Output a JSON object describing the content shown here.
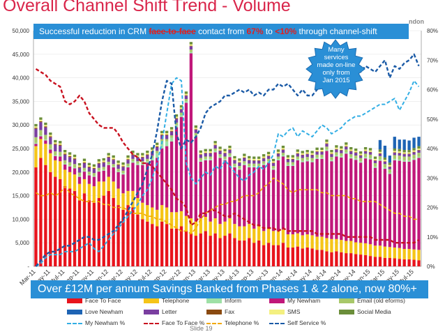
{
  "slide": {
    "title": "Overall Channel Shift Trend - Volume",
    "brand_fragment": "ndon",
    "slide_number": "Slide 19"
  },
  "banner_top": {
    "prefix": "Successful reduction in CRM ",
    "highlight1": "face-to-face",
    "middle1": " contact from ",
    "highlight2": "67%",
    "middle2": " to ",
    "highlight3": "<10%",
    "suffix": " through channel-shift"
  },
  "callout": {
    "text": "Many services made on-line only from Jan 2015",
    "color": "#2a8fd6"
  },
  "banner_bottom": {
    "text": "Over £12M per annum Savings Banked from Phases 1 & 2 alone, now 80%+"
  },
  "chart_data": {
    "type": "bar",
    "stacked": true,
    "left_axis": {
      "min": 0,
      "max": 50000,
      "ticks": [
        0,
        5000,
        10000,
        15000,
        20000,
        25000,
        30000,
        35000,
        40000,
        45000,
        50000
      ],
      "tick_labels": [
        "-",
        "5,000",
        "10,000",
        "15,000",
        "20,000",
        "25,000",
        "30,000",
        "35,000",
        "40,000",
        "45,000",
        "50,000"
      ]
    },
    "right_axis": {
      "min": 0,
      "max": 80,
      "ticks": [
        0,
        10,
        20,
        30,
        40,
        50,
        60,
        70,
        80
      ],
      "tick_labels": [
        "0%",
        "10%",
        "20%",
        "30%",
        "40%",
        "50%",
        "60%",
        "70%",
        "80%"
      ]
    },
    "x_labels": [
      {
        "index": 0,
        "label": "Mar-11"
      },
      {
        "index": 3,
        "label": "May-11"
      },
      {
        "index": 6,
        "label": "Jul-11"
      },
      {
        "index": 9,
        "label": "Sep-11"
      },
      {
        "index": 12,
        "label": "Nov-11"
      },
      {
        "index": 15,
        "label": "Jan-12"
      },
      {
        "index": 18,
        "label": "Mar-12"
      },
      {
        "index": 21,
        "label": "May-12"
      },
      {
        "index": 24,
        "label": "Jul-12"
      },
      {
        "index": 27,
        "label": "Sep-12"
      },
      {
        "index": 30,
        "label": "Nov-12"
      },
      {
        "index": 33,
        "label": "Jan-13"
      },
      {
        "index": 36,
        "label": "Mar-13"
      },
      {
        "index": 39,
        "label": "May-13"
      },
      {
        "index": 42,
        "label": "Jul-13"
      },
      {
        "index": 45,
        "label": "Sep-13"
      },
      {
        "index": 48,
        "label": "Nov-13"
      },
      {
        "index": 51,
        "label": "Jan-14"
      },
      {
        "index": 54,
        "label": "Mar-14"
      },
      {
        "index": 57,
        "label": "May-14"
      },
      {
        "index": 60,
        "label": "Jul-14"
      },
      {
        "index": 63,
        "label": "Sep-14"
      },
      {
        "index": 66,
        "label": "Nov-14"
      },
      {
        "index": 69,
        "label": "Jan-15"
      },
      {
        "index": 72,
        "label": "Mar-15"
      },
      {
        "index": 75,
        "label": "May-15"
      },
      {
        "index": 78,
        "label": "Jul-15"
      }
    ],
    "categories_count": 80,
    "face_to_face": [
      21000,
      23000,
      21500,
      20000,
      19000,
      18500,
      17000,
      16500,
      16000,
      14000,
      15500,
      14000,
      13500,
      14500,
      15000,
      16000,
      14500,
      13000,
      12000,
      13000,
      12500,
      11000,
      10000,
      9500,
      9000,
      8500,
      9500,
      9000,
      8000,
      8000,
      8500,
      7500,
      7000,
      6500,
      7000,
      7500,
      6500,
      7000,
      6000,
      6500,
      7000,
      6000,
      5500,
      5500,
      6000,
      5000,
      5500,
      4500,
      5000,
      4500,
      4500,
      5000,
      4000,
      4000,
      4200,
      3800,
      4000,
      3800,
      3500,
      3500,
      3200,
      3000,
      3200,
      3000,
      2800,
      2800,
      2600,
      2500,
      2400,
      2200,
      2000,
      2000,
      1800,
      1800,
      1700,
      1600,
      1500,
      1500,
      1400,
      1300
    ],
    "telephone": [
      4500,
      4000,
      4500,
      4000,
      3500,
      3800,
      3500,
      3500,
      3500,
      3500,
      3000,
      3500,
      3500,
      3500,
      3000,
      3000,
      3500,
      3500,
      3500,
      3000,
      3500,
      3500,
      3500,
      3500,
      3500,
      3500,
      3500,
      3500,
      3500,
      3500,
      3200,
      3200,
      3200,
      3000,
      3200,
      3000,
      3000,
      3200,
      3000,
      3000,
      3200,
      3000,
      3000,
      3000,
      3000,
      3000,
      3000,
      3000,
      3000,
      3000,
      3000,
      2800,
      2800,
      2800,
      2800,
      2800,
      2800,
      2800,
      2800,
      2800,
      2800,
      2800,
      2600,
      2600,
      2600,
      2600,
      2500,
      2500,
      2500,
      2500,
      2400,
      2400,
      2400,
      2300,
      2300,
      2300,
      2200,
      2200,
      2200,
      2200
    ],
    "my_newham": [
      500,
      600,
      700,
      800,
      900,
      1000,
      1100,
      1200,
      1300,
      1500,
      1600,
      1800,
      2000,
      2100,
      2300,
      2500,
      3000,
      3500,
      4000,
      5000,
      6000,
      7000,
      8000,
      9000,
      10000,
      11000,
      12000,
      13000,
      15000,
      18000,
      20000,
      24000,
      35000,
      18000,
      12000,
      12000,
      13000,
      14000,
      14000,
      13000,
      13000,
      12000,
      12000,
      13000,
      12000,
      13000,
      12500,
      14000,
      14000,
      13000,
      15000,
      15500,
      14500,
      14500,
      15500,
      15500,
      15500,
      15500,
      16500,
      16500,
      18500,
      16500,
      17500,
      17500,
      18500,
      17500,
      17500,
      17000,
      18000,
      18000,
      16500,
      18000,
      16500,
      15500,
      18500,
      18500,
      18500,
      18500,
      19000,
      19500
    ],
    "inform": [
      200,
      200,
      200,
      200,
      200,
      200,
      200,
      200,
      200,
      200,
      200,
      200,
      200,
      200,
      200,
      200,
      200,
      200,
      300,
      300,
      300,
      300,
      300,
      300,
      500,
      1000,
      1500,
      1000,
      800,
      500,
      400,
      300,
      300,
      300,
      300,
      300,
      300,
      300,
      300,
      300,
      300,
      300,
      300,
      300,
      300,
      300,
      300,
      300,
      300,
      300,
      300,
      300,
      300,
      300,
      300,
      300,
      300,
      300,
      300,
      300,
      300,
      300,
      300,
      300,
      300,
      300,
      300,
      300,
      300,
      300,
      300,
      300,
      300,
      300,
      300,
      300,
      300,
      300,
      300,
      300
    ],
    "email": [
      1200,
      1100,
      1000,
      900,
      800,
      800,
      700,
      700,
      700,
      700,
      600,
      600,
      600,
      600,
      600,
      500,
      500,
      500,
      500,
      500,
      500,
      500,
      500,
      500,
      500,
      500,
      500,
      500,
      500,
      500,
      500,
      500,
      500,
      500,
      500,
      500,
      500,
      500,
      500,
      500,
      500,
      500,
      500,
      500,
      500,
      500,
      500,
      500,
      500,
      500,
      500,
      500,
      500,
      500,
      500,
      600,
      600,
      600,
      600,
      600,
      600,
      600,
      600,
      600,
      600,
      600,
      600,
      700,
      700,
      700,
      700,
      700,
      700,
      700,
      800,
      800,
      800,
      800,
      800,
      800
    ],
    "letter": [
      1800,
      1700,
      1600,
      1500,
      1400,
      1300,
      1200,
      1100,
      1000,
      1000,
      1000,
      900,
      900,
      900,
      900,
      900,
      900,
      800,
      800,
      800,
      800,
      800,
      800,
      800,
      800,
      800,
      800,
      800,
      800,
      800,
      700,
      700,
      700,
      700,
      700,
      700,
      700,
      700,
      700,
      700,
      700,
      700,
      700,
      700,
      700,
      600,
      600,
      600,
      600,
      600,
      600,
      600,
      600,
      600,
      600,
      600,
      600,
      600,
      600,
      600,
      600,
      600,
      600,
      600,
      600,
      600,
      600,
      500,
      500,
      500,
      500,
      500,
      500,
      500,
      500,
      500,
      500,
      500,
      500,
      500
    ],
    "fax": [
      200,
      200,
      200,
      200,
      200,
      200,
      200,
      200,
      200,
      200,
      150,
      150,
      150,
      150,
      150,
      150,
      150,
      150,
      150,
      150,
      150,
      150,
      150,
      150,
      150,
      150,
      150,
      150,
      150,
      150,
      100,
      100,
      100,
      100,
      100,
      100,
      100,
      100,
      100,
      100,
      100,
      100,
      100,
      100,
      100,
      100,
      100,
      100,
      100,
      100,
      100,
      100,
      100,
      100,
      100,
      100,
      100,
      100,
      100,
      100,
      100,
      100,
      100,
      100,
      100,
      100,
      100,
      100,
      100,
      100,
      100,
      100,
      100,
      100,
      100,
      100,
      100,
      100,
      100,
      100
    ],
    "sms": [
      300,
      300,
      300,
      300,
      300,
      300,
      300,
      300,
      300,
      300,
      300,
      300,
      300,
      300,
      300,
      300,
      300,
      300,
      300,
      300,
      300,
      300,
      300,
      300,
      300,
      300,
      300,
      300,
      300,
      300,
      300,
      300,
      300,
      300,
      300,
      300,
      300,
      300,
      300,
      300,
      300,
      300,
      300,
      300,
      300,
      300,
      300,
      300,
      300,
      300,
      300,
      300,
      300,
      300,
      300,
      300,
      300,
      300,
      300,
      300,
      300,
      300,
      300,
      300,
      300,
      300,
      300,
      300,
      300,
      300,
      300,
      300,
      300,
      300,
      300,
      300,
      300,
      300,
      300,
      300
    ],
    "social_media": [
      500,
      500,
      500,
      500,
      500,
      500,
      500,
      500,
      500,
      500,
      500,
      500,
      500,
      500,
      500,
      500,
      500,
      500,
      500,
      500,
      500,
      500,
      500,
      500,
      500,
      500,
      500,
      500,
      500,
      500,
      500,
      500,
      500,
      500,
      500,
      500,
      500,
      500,
      500,
      500,
      500,
      500,
      500,
      500,
      500,
      500,
      500,
      500,
      500,
      500,
      500,
      500,
      500,
      500,
      500,
      500,
      500,
      500,
      500,
      500,
      500,
      500,
      500,
      500,
      500,
      500,
      500,
      500,
      500,
      500,
      500,
      500,
      500,
      500,
      500,
      500,
      500,
      500,
      500,
      500
    ],
    "love_newham": [
      0,
      0,
      0,
      0,
      0,
      0,
      0,
      0,
      0,
      0,
      0,
      0,
      0,
      0,
      0,
      0,
      0,
      0,
      0,
      0,
      0,
      0,
      0,
      0,
      0,
      0,
      0,
      0,
      0,
      0,
      0,
      0,
      0,
      0,
      0,
      0,
      0,
      0,
      0,
      0,
      0,
      0,
      0,
      0,
      0,
      0,
      0,
      0,
      0,
      0,
      0,
      0,
      0,
      0,
      0,
      0,
      0,
      0,
      0,
      0,
      0,
      0,
      0,
      0,
      0,
      0,
      0,
      0,
      0,
      0,
      0,
      2000,
      2500,
      1500,
      2500,
      2000,
      2200,
      2000,
      2200,
      2000
    ],
    "lines": {
      "my_newham_pct": [
        0,
        1,
        3,
        4,
        4,
        4,
        5,
        5,
        5,
        6,
        7,
        8,
        6,
        5,
        7,
        9,
        11,
        13,
        15,
        17,
        19,
        21,
        24,
        26,
        30,
        35,
        42,
        52,
        62,
        64,
        63,
        35,
        30,
        28,
        30,
        32,
        31,
        34,
        33,
        36,
        34,
        32,
        30,
        29,
        31,
        32,
        34,
        33,
        35,
        38,
        45,
        44,
        46,
        47,
        44,
        46,
        45,
        44,
        46,
        48,
        47,
        45,
        46,
        47,
        49,
        50,
        51,
        51,
        52,
        53,
        54,
        55,
        55,
        56,
        57,
        53,
        56,
        59,
        63,
        61
      ],
      "face_to_face_pct": [
        67,
        66,
        65,
        63,
        62,
        61,
        56,
        55,
        56,
        58,
        56,
        52,
        50,
        48,
        47,
        47,
        47,
        45,
        42,
        40,
        38,
        37,
        35,
        35,
        34,
        32,
        30,
        28,
        26,
        23,
        22,
        20,
        14,
        15,
        18,
        18,
        19,
        19,
        18,
        17,
        17,
        18,
        17,
        16,
        15,
        14,
        14,
        13,
        13,
        13,
        12,
        13,
        12,
        12,
        12,
        12,
        12,
        12,
        11,
        11,
        11,
        11,
        11,
        11,
        10,
        10,
        10,
        10,
        10,
        10,
        9,
        9,
        9,
        9,
        8,
        8,
        8,
        8,
        8,
        9
      ],
      "telephone_pct": [
        25,
        24,
        24,
        25,
        24,
        25,
        27,
        25,
        24,
        23,
        22,
        22,
        22,
        22,
        21,
        21,
        20,
        20,
        20,
        19,
        18,
        18,
        18,
        17,
        17,
        16,
        16,
        15,
        14,
        13,
        12,
        12,
        11,
        13,
        16,
        18,
        19,
        20,
        21,
        21,
        22,
        22,
        23,
        24,
        24,
        24,
        25,
        27,
        28,
        30,
        29,
        28,
        26,
        25,
        26,
        26,
        26,
        26,
        26,
        25,
        25,
        24,
        24,
        24,
        24,
        23,
        23,
        22,
        22,
        22,
        22,
        21,
        20,
        19,
        18,
        18,
        17,
        17,
        16,
        16
      ],
      "self_service_pct": [
        0,
        2,
        4,
        5,
        5,
        6,
        7,
        7,
        8,
        9,
        10,
        10,
        9,
        9,
        10,
        11,
        12,
        14,
        16,
        19,
        22,
        25,
        28,
        33,
        38,
        46,
        56,
        63,
        62,
        45,
        40,
        43,
        42,
        44,
        47,
        52,
        54,
        55,
        56,
        58,
        58,
        59,
        60,
        59,
        60,
        58,
        59,
        58,
        60,
        60,
        62,
        61,
        62,
        60,
        58,
        60,
        58,
        58,
        60,
        62,
        64,
        62,
        63,
        63,
        65,
        65,
        66,
        66,
        68,
        67,
        66,
        68,
        70,
        64,
        68,
        67,
        69,
        70,
        72,
        68
      ]
    }
  },
  "legend": [
    {
      "label": "Face To Face",
      "kind": "bar",
      "color": "#e8141c"
    },
    {
      "label": "Telephone",
      "kind": "bar",
      "color": "#f5c518"
    },
    {
      "label": "Inform",
      "kind": "bar",
      "color": "#9ee0a6"
    },
    {
      "label": "My Newham",
      "kind": "bar",
      "color": "#c0187a"
    },
    {
      "label": "Email (old eforms)",
      "kind": "bar",
      "color": "#a8c86a"
    },
    {
      "label": "Love Newham",
      "kind": "bar",
      "color": "#1e64b4"
    },
    {
      "label": "Letter",
      "kind": "bar",
      "color": "#7a3ea0"
    },
    {
      "label": "Fax",
      "kind": "bar",
      "color": "#8a4a10"
    },
    {
      "label": "SMS",
      "kind": "bar",
      "color": "#f4f080"
    },
    {
      "label": "Social Media",
      "kind": "bar",
      "color": "#6b8e3a"
    },
    {
      "label": "My Newham %",
      "kind": "line",
      "color": "#32aee4"
    },
    {
      "label": "Face To Face %",
      "kind": "line",
      "color": "#c8101e"
    },
    {
      "label": "Telephone %",
      "kind": "line",
      "color": "#f2a900"
    },
    {
      "label": "Self Service %",
      "kind": "line",
      "color": "#1a5aa6"
    }
  ]
}
